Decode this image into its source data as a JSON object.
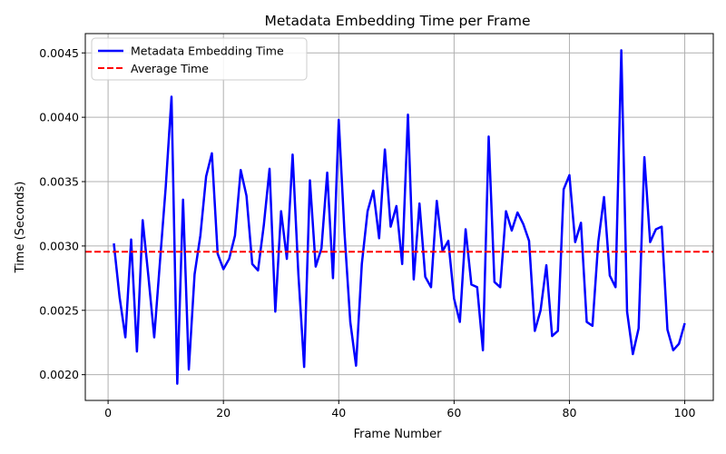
{
  "chart_data": {
    "type": "line",
    "title": "Metadata Embedding Time per Frame",
    "xlabel": "Frame Number",
    "ylabel": "Time (Seconds)",
    "xlim": [
      -3.95,
      104.95
    ],
    "ylim": [
      0.0018,
      0.00465
    ],
    "xticks": [
      0,
      20,
      40,
      60,
      80,
      100
    ],
    "xtick_labels": [
      "0",
      "20",
      "40",
      "60",
      "80",
      "100"
    ],
    "yticks": [
      0.002,
      0.0025,
      0.003,
      0.0035,
      0.004,
      0.0045
    ],
    "ytick_labels": [
      "0.0020",
      "0.0025",
      "0.0030",
      "0.0035",
      "0.0040",
      "0.0045"
    ],
    "grid": true,
    "legend_position": "upper-left",
    "series": [
      {
        "name": "Metadata Embedding Time",
        "color": "#0000ff",
        "style": "solid",
        "x": [
          1,
          2,
          3,
          4,
          5,
          6,
          7,
          8,
          9,
          10,
          11,
          12,
          13,
          14,
          15,
          16,
          17,
          18,
          19,
          20,
          21,
          22,
          23,
          24,
          25,
          26,
          27,
          28,
          29,
          30,
          31,
          32,
          33,
          34,
          35,
          36,
          37,
          38,
          39,
          40,
          41,
          42,
          43,
          44,
          45,
          46,
          47,
          48,
          49,
          50,
          51,
          52,
          53,
          54,
          55,
          56,
          57,
          58,
          59,
          60,
          61,
          62,
          63,
          64,
          65,
          66,
          67,
          68,
          69,
          70,
          71,
          72,
          73,
          74,
          75,
          76,
          77,
          78,
          79,
          80,
          81,
          82,
          83,
          84,
          85,
          86,
          87,
          88,
          89,
          90,
          91,
          92,
          93,
          94,
          95,
          96,
          97,
          98,
          99,
          100
        ],
        "values": [
          0.00302,
          0.0026,
          0.00229,
          0.00305,
          0.00218,
          0.0032,
          0.00276,
          0.00229,
          0.00288,
          0.00346,
          0.00416,
          0.00193,
          0.00336,
          0.00204,
          0.00278,
          0.00308,
          0.00354,
          0.00372,
          0.00294,
          0.00282,
          0.0029,
          0.00308,
          0.00359,
          0.00339,
          0.00286,
          0.00281,
          0.00316,
          0.0036,
          0.00249,
          0.00327,
          0.0029,
          0.00371,
          0.00278,
          0.00206,
          0.00351,
          0.00284,
          0.00298,
          0.00357,
          0.00275,
          0.00398,
          0.0031,
          0.00241,
          0.00207,
          0.00286,
          0.00327,
          0.00343,
          0.00306,
          0.00375,
          0.00315,
          0.00331,
          0.00286,
          0.00402,
          0.00274,
          0.00333,
          0.00276,
          0.00268,
          0.00335,
          0.00296,
          0.00304,
          0.00259,
          0.00241,
          0.00313,
          0.0027,
          0.00268,
          0.00219,
          0.00385,
          0.00272,
          0.00268,
          0.00327,
          0.00312,
          0.00326,
          0.00317,
          0.00304,
          0.00234,
          0.0025,
          0.00285,
          0.0023,
          0.00234,
          0.00344,
          0.00355,
          0.00303,
          0.00318,
          0.00241,
          0.00238,
          0.00303,
          0.00338,
          0.00277,
          0.00268,
          0.00452,
          0.00249,
          0.00216,
          0.00236,
          0.00369,
          0.00303,
          0.00313,
          0.00315,
          0.00235,
          0.00219,
          0.00224,
          0.0024
        ]
      },
      {
        "name": "Average Time",
        "color": "#ff0000",
        "style": "dashed",
        "horizontal_line": 0.002955
      }
    ]
  }
}
